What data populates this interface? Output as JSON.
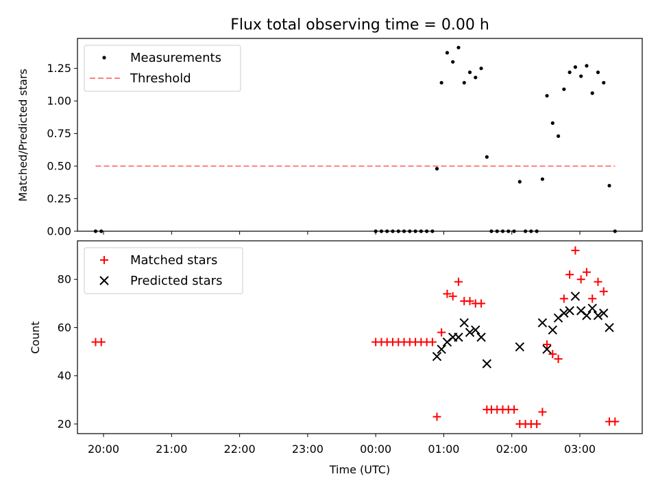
{
  "chart_data": [
    {
      "type": "scatter",
      "title": "Flux total observing time = 0.00 h",
      "ylabel": "Matched/Predicted stars",
      "xlabel": "",
      "xlim": [
        "19:37",
        "03:55"
      ],
      "ylim": [
        0,
        1.48
      ],
      "yticks": [
        0.0,
        0.25,
        0.5,
        0.75,
        1.0,
        1.25
      ],
      "ytick_labels": [
        "0.00",
        "0.25",
        "0.50",
        "0.75",
        "1.00",
        "1.25"
      ],
      "legend_position": "top-left",
      "series": [
        {
          "name": "Measurements",
          "marker": "dot",
          "color": "#000000",
          "points": [
            [
              "19:53",
              0.0
            ],
            [
              "19:58",
              0.0
            ],
            [
              "00:00",
              0.0
            ],
            [
              "00:05",
              0.0
            ],
            [
              "00:10",
              0.0
            ],
            [
              "00:15",
              0.0
            ],
            [
              "00:20",
              0.0
            ],
            [
              "00:25",
              0.0
            ],
            [
              "00:30",
              0.0
            ],
            [
              "00:35",
              0.0
            ],
            [
              "00:40",
              0.0
            ],
            [
              "00:45",
              0.0
            ],
            [
              "00:50",
              0.0
            ],
            [
              "00:54",
              0.48
            ],
            [
              "00:58",
              1.14
            ],
            [
              "01:03",
              1.37
            ],
            [
              "01:08",
              1.3
            ],
            [
              "01:13",
              1.41
            ],
            [
              "01:18",
              1.14
            ],
            [
              "01:23",
              1.22
            ],
            [
              "01:28",
              1.18
            ],
            [
              "01:33",
              1.25
            ],
            [
              "01:38",
              0.57
            ],
            [
              "01:42",
              0.0
            ],
            [
              "01:47",
              0.0
            ],
            [
              "01:52",
              0.0
            ],
            [
              "01:57",
              0.0
            ],
            [
              "02:02",
              0.0
            ],
            [
              "02:07",
              0.38
            ],
            [
              "02:12",
              0.0
            ],
            [
              "02:17",
              0.0
            ],
            [
              "02:22",
              0.0
            ],
            [
              "02:27",
              0.4
            ],
            [
              "02:31",
              1.04
            ],
            [
              "02:36",
              0.83
            ],
            [
              "02:41",
              0.73
            ],
            [
              "02:46",
              1.09
            ],
            [
              "02:51",
              1.22
            ],
            [
              "02:56",
              1.26
            ],
            [
              "03:01",
              1.19
            ],
            [
              "03:06",
              1.27
            ],
            [
              "03:11",
              1.06
            ],
            [
              "03:16",
              1.22
            ],
            [
              "03:21",
              1.14
            ],
            [
              "03:26",
              0.35
            ],
            [
              "03:31",
              0.0
            ]
          ]
        },
        {
          "name": "Threshold",
          "marker": "dashed-line",
          "color": "#ff7f7f",
          "points": [
            [
              "19:53",
              0.5
            ],
            [
              "03:31",
              0.5
            ]
          ]
        }
      ]
    },
    {
      "type": "scatter",
      "title": "",
      "ylabel": "Count",
      "xlabel": "Time (UTC)",
      "xlim": [
        "19:37",
        "03:55"
      ],
      "ylim": [
        16,
        96
      ],
      "yticks": [
        20,
        40,
        60,
        80
      ],
      "ytick_labels": [
        "20",
        "40",
        "60",
        "80"
      ],
      "xticks": [
        "20:00",
        "21:00",
        "22:00",
        "23:00",
        "00:00",
        "01:00",
        "02:00",
        "03:00"
      ],
      "xtick_labels": [
        "20:00",
        "21:00",
        "22:00",
        "23:00",
        "00:00",
        "01:00",
        "02:00",
        "03:00"
      ],
      "legend_position": "top-left",
      "series": [
        {
          "name": "Matched stars",
          "marker": "plus",
          "color": "#ff0000",
          "points": [
            [
              "19:53",
              54
            ],
            [
              "19:58",
              54
            ],
            [
              "00:00",
              54
            ],
            [
              "00:05",
              54
            ],
            [
              "00:10",
              54
            ],
            [
              "00:15",
              54
            ],
            [
              "00:20",
              54
            ],
            [
              "00:25",
              54
            ],
            [
              "00:30",
              54
            ],
            [
              "00:35",
              54
            ],
            [
              "00:40",
              54
            ],
            [
              "00:45",
              54
            ],
            [
              "00:50",
              54
            ],
            [
              "00:54",
              23
            ],
            [
              "00:58",
              58
            ],
            [
              "01:03",
              74
            ],
            [
              "01:08",
              73
            ],
            [
              "01:13",
              79
            ],
            [
              "01:18",
              71
            ],
            [
              "01:23",
              71
            ],
            [
              "01:28",
              70
            ],
            [
              "01:33",
              70
            ],
            [
              "01:38",
              26
            ],
            [
              "01:42",
              26
            ],
            [
              "01:47",
              26
            ],
            [
              "01:52",
              26
            ],
            [
              "01:57",
              26
            ],
            [
              "02:02",
              26
            ],
            [
              "02:07",
              20
            ],
            [
              "02:12",
              20
            ],
            [
              "02:17",
              20
            ],
            [
              "02:22",
              20
            ],
            [
              "02:27",
              25
            ],
            [
              "02:31",
              53
            ],
            [
              "02:36",
              49
            ],
            [
              "02:41",
              47
            ],
            [
              "02:46",
              72
            ],
            [
              "02:51",
              82
            ],
            [
              "02:56",
              92
            ],
            [
              "03:01",
              80
            ],
            [
              "03:06",
              83
            ],
            [
              "03:11",
              72
            ],
            [
              "03:16",
              79
            ],
            [
              "03:21",
              75
            ],
            [
              "03:26",
              21
            ],
            [
              "03:31",
              21
            ]
          ]
        },
        {
          "name": "Predicted stars",
          "marker": "x",
          "color": "#000000",
          "points": [
            [
              "00:54",
              48
            ],
            [
              "00:58",
              51
            ],
            [
              "01:03",
              54
            ],
            [
              "01:08",
              56
            ],
            [
              "01:13",
              56
            ],
            [
              "01:18",
              62
            ],
            [
              "01:23",
              58
            ],
            [
              "01:28",
              59
            ],
            [
              "01:33",
              56
            ],
            [
              "01:38",
              45
            ],
            [
              "02:07",
              52
            ],
            [
              "02:27",
              62
            ],
            [
              "02:31",
              51
            ],
            [
              "02:36",
              59
            ],
            [
              "02:41",
              64
            ],
            [
              "02:46",
              66
            ],
            [
              "02:51",
              67
            ],
            [
              "02:56",
              73
            ],
            [
              "03:01",
              67
            ],
            [
              "03:06",
              65
            ],
            [
              "03:11",
              68
            ],
            [
              "03:16",
              65
            ],
            [
              "03:21",
              66
            ],
            [
              "03:26",
              60
            ]
          ]
        }
      ]
    }
  ]
}
